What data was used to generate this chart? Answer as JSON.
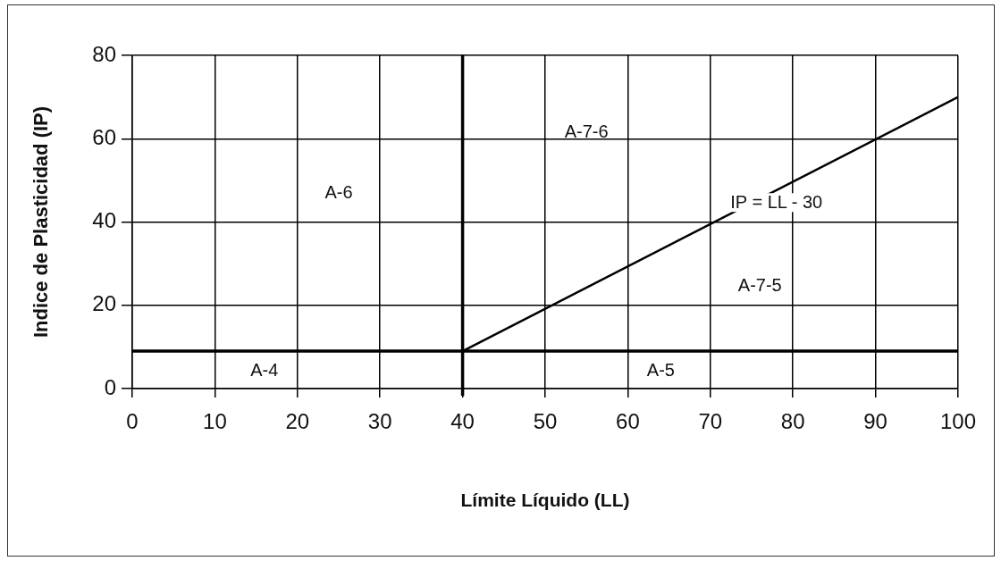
{
  "chart_data": {
    "type": "line",
    "xlabel": "Límite Líquido (LL)",
    "ylabel": "Indice de Plasticidad (IP)",
    "xlim": [
      0,
      100
    ],
    "xticks": [
      0,
      10,
      20,
      30,
      40,
      50,
      60,
      70,
      80,
      90,
      100
    ],
    "ylim": [
      0,
      80
    ],
    "yticks": [
      0,
      20,
      40,
      60,
      80
    ],
    "series": [
      {
        "x": [
          40,
          100
        ],
        "values": [
          9,
          70
        ],
        "color": "#000000"
      }
    ],
    "ref_lines": [
      {
        "axis": "y",
        "value": 9,
        "color": "#000000"
      },
      {
        "axis": "x",
        "value": 40,
        "color": "#000000"
      }
    ],
    "annotations": [
      "A-6",
      "A-7-6",
      "IP = LL - 30",
      "A-7-5",
      "A-4",
      "A-5"
    ],
    "grid": true,
    "legend": false,
    "marker": "none",
    "line_style": "solid"
  }
}
